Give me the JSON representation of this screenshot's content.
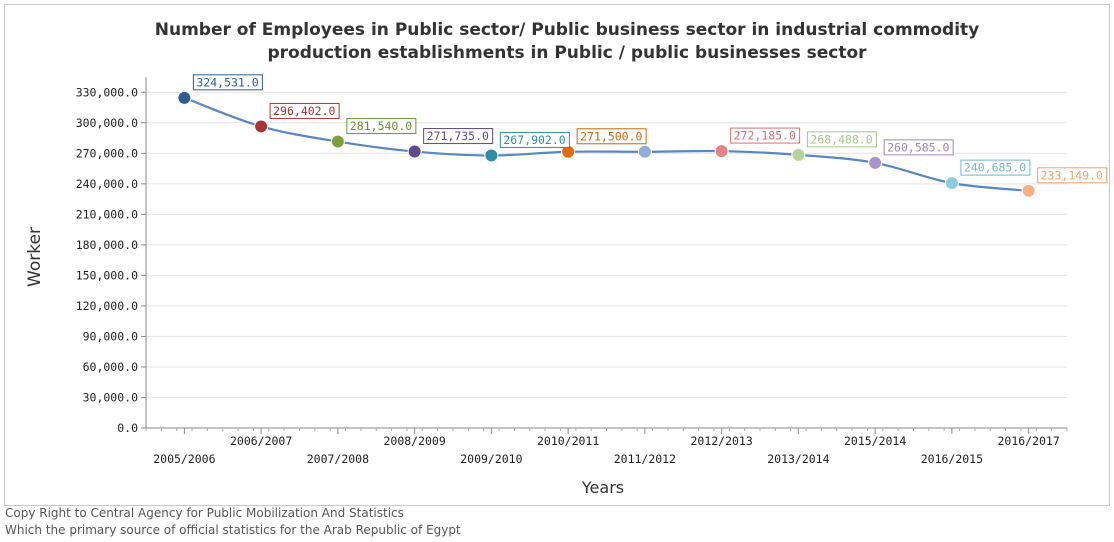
{
  "chart_data": {
    "type": "line",
    "title_lines": [
      "Number of Employees in Public sector/ Public business sector in industrial commodity",
      "production establishments in Public / public businesses sector"
    ],
    "xlabel": "Years",
    "ylabel": "Worker",
    "categories": [
      "2005/2006",
      "2006/2007",
      "2007/2008",
      "2008/2009",
      "2009/2010",
      "2010/2011",
      "2011/2012",
      "2012/2013",
      "2013/2014",
      "2015/2014",
      "2016/2015",
      "2016/2017"
    ],
    "series": [
      {
        "values": [
          324531,
          296402,
          281540,
          271735,
          267902,
          271500,
          271500,
          272185,
          268488,
          260585,
          240685,
          233149
        ],
        "data_labels": [
          "324,531.0",
          "296,402.0",
          "281,540.0",
          "271,735.0",
          "267,902.0",
          "271,500.0",
          "",
          "272,185.0",
          "268,488.0",
          "260,585.0",
          "240,685.0",
          "233,149.0"
        ],
        "line_color": "#5b87c0"
      }
    ],
    "point_colors": [
      "#2e5e8f",
      "#a83434",
      "#7aa23a",
      "#5e4a8c",
      "#2f8ea3",
      "#e36c0a",
      "#93aed6",
      "#e08486",
      "#b6d39a",
      "#a995c6",
      "#8ccbe0",
      "#f6b284"
    ],
    "label_colors": [
      "#2e5e8f",
      "#a83434",
      "#6b9232",
      "#5e4a8c",
      "#2f8ea3",
      "#d2650a",
      "#93aed6",
      "#d87073",
      "#a7c58a",
      "#9d8ac0",
      "#6fb8d3",
      "#f0a070"
    ],
    "yticks": [
      "0.0",
      "30,000.0",
      "60,000.0",
      "90,000.0",
      "120,000.0",
      "150,000.0",
      "180,000.0",
      "210,000.0",
      "240,000.0",
      "270,000.0",
      "300,000.0",
      "330,000.0"
    ],
    "ylim": [
      0,
      345000
    ],
    "grid": true,
    "legend": "none"
  },
  "footer": {
    "line1": "Copy Right to Central Agency for Public Mobilization And Statistics",
    "line2": "Which the primary source of official statistics for the Arab Republic of Egypt"
  }
}
